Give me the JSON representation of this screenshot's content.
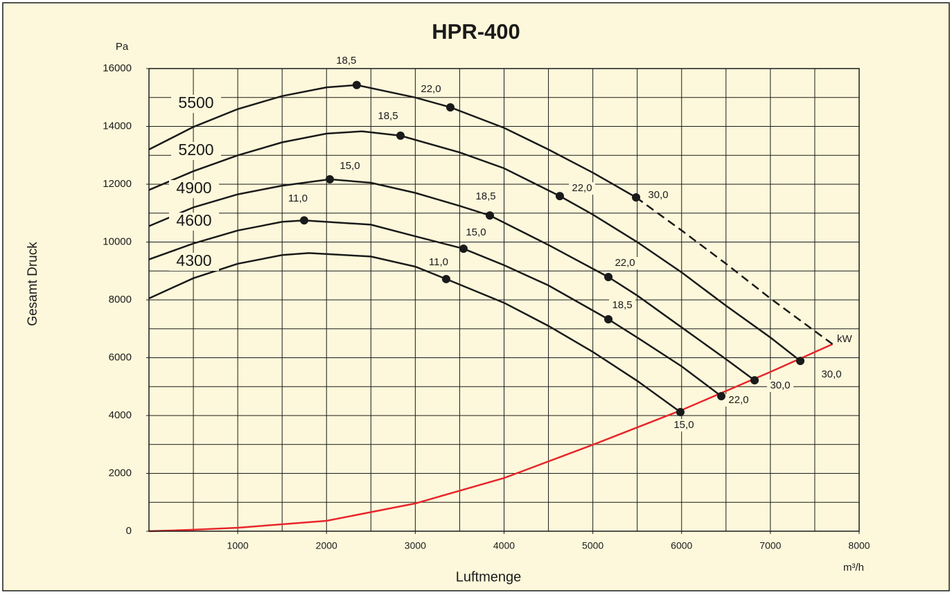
{
  "chart_data": {
    "type": "line",
    "title": "HPR-400",
    "y_unit": "Pa",
    "ylabel": "Gesamt Druck",
    "xlabel": "Luftmenge",
    "x_unit": "m³/h",
    "power_unit": "kW",
    "xlim": [
      0,
      8000
    ],
    "ylim": [
      0,
      16000
    ],
    "xticks": [
      1000,
      2000,
      3000,
      4000,
      5000,
      6000,
      7000,
      8000
    ],
    "yticks": [
      0,
      2000,
      4000,
      6000,
      8000,
      10000,
      12000,
      14000,
      16000
    ],
    "xgrid": [
      500,
      1000,
      1500,
      2000,
      2500,
      3000,
      3500,
      4000,
      4500,
      5000,
      5500,
      6000,
      6500,
      7000,
      7500
    ],
    "ygrid": [
      1000,
      2000,
      3000,
      4000,
      5000,
      6000,
      7000,
      8000,
      9000,
      10000,
      11000,
      12000,
      13000,
      14000,
      15000
    ],
    "grid": true,
    "series": [
      {
        "name": "5500",
        "color": "#1a1a1a",
        "x": [
          0,
          500,
          1000,
          1500,
          2000,
          2340,
          3000,
          3395,
          4000,
          4500,
          5000,
          5487
        ],
        "values": [
          13200,
          13980,
          14600,
          15050,
          15350,
          15430,
          15000,
          14660,
          13950,
          13200,
          12400,
          11545
        ],
        "dashed_x": [
          5487,
          6000,
          6500,
          7000,
          7700
        ],
        "dashed_values": [
          11545,
          10400,
          9250,
          8050,
          6470
        ],
        "points": {
          "x": [
            2340,
            3395,
            5487
          ],
          "values": [
            15430,
            14660,
            11545
          ],
          "labels": [
            "18,5",
            "22,0",
            "30,0"
          ]
        }
      },
      {
        "name": "5200",
        "color": "#1a1a1a",
        "x": [
          0,
          500,
          1000,
          1500,
          2000,
          2400,
          2833,
          3500,
          4000,
          4628,
          5000,
          5500,
          6000,
          6500,
          7000,
          7337
        ],
        "values": [
          11800,
          12450,
          13000,
          13450,
          13750,
          13830,
          13680,
          13100,
          12550,
          11590,
          10950,
          10000,
          8950,
          7800,
          6700,
          5890
        ],
        "points": {
          "x": [
            2833,
            4628,
            7337
          ],
          "values": [
            13680,
            11590,
            5890
          ],
          "labels": [
            "18,5",
            "22,0",
            "30,0"
          ]
        }
      },
      {
        "name": "4900",
        "color": "#1a1a1a",
        "x": [
          0,
          500,
          1000,
          1500,
          2037,
          2500,
          3000,
          3500,
          3840,
          4500,
          5175,
          5500,
          6000,
          6500,
          6822
        ],
        "values": [
          10550,
          11200,
          11650,
          11950,
          12170,
          12050,
          11700,
          11250,
          10920,
          9900,
          8790,
          8150,
          7050,
          5950,
          5220
        ],
        "points": {
          "x": [
            2037,
            3840,
            5175,
            6822
          ],
          "values": [
            12170,
            10920,
            8790,
            5220
          ],
          "labels": [
            "15,0",
            "18,5",
            "22,0",
            "30,0"
          ]
        }
      },
      {
        "name": "4600",
        "color": "#1a1a1a",
        "x": [
          0,
          500,
          1000,
          1500,
          1748,
          2500,
          3000,
          3543,
          4000,
          4500,
          5175,
          5500,
          6000,
          6447
        ],
        "values": [
          9400,
          9950,
          10400,
          10700,
          10750,
          10600,
          10200,
          9770,
          9200,
          8500,
          7330,
          6700,
          5700,
          4670
        ],
        "points": {
          "x": [
            1748,
            3543,
            5175,
            6447
          ],
          "values": [
            10750,
            9770,
            7330,
            4670
          ],
          "labels": [
            "11,0",
            "15,0",
            "18,5",
            "22,0"
          ]
        }
      },
      {
        "name": "4300",
        "color": "#1a1a1a",
        "x": [
          0,
          500,
          1000,
          1500,
          1800,
          2500,
          3000,
          3348,
          4000,
          4500,
          5000,
          5500,
          5986
        ],
        "values": [
          8050,
          8750,
          9250,
          9550,
          9620,
          9500,
          9150,
          8720,
          7900,
          7100,
          6200,
          5200,
          4120
        ],
        "points": {
          "x": [
            3348,
            5986
          ],
          "values": [
            8720,
            4120
          ],
          "labels": [
            "11,0",
            "15,0"
          ]
        }
      }
    ],
    "system_curve": {
      "color": "#e8262b",
      "x": [
        0,
        500,
        1000,
        1500,
        2000,
        3000,
        4000,
        5000,
        6000,
        7000,
        7700
      ],
      "values": [
        0,
        50,
        120,
        240,
        360,
        960,
        1840,
        2990,
        4190,
        5510,
        6470
      ]
    }
  }
}
